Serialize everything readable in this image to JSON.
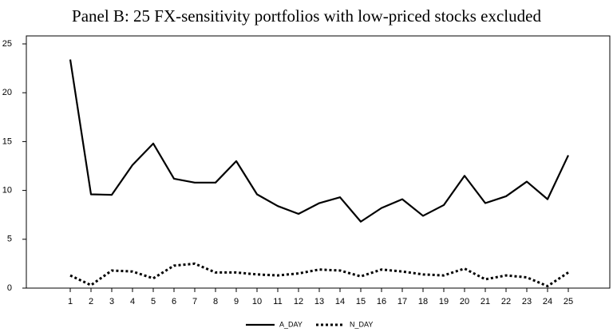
{
  "chart_data": {
    "type": "line",
    "title": "Panel B: 25 FX-sensitivity portfolios with low-priced stocks excluded",
    "categories": [
      "1",
      "2",
      "3",
      "4",
      "5",
      "6",
      "7",
      "8",
      "9",
      "10",
      "11",
      "12",
      "13",
      "14",
      "15",
      "16",
      "17",
      "18",
      "19",
      "20",
      "21",
      "22",
      "23",
      "24",
      "25"
    ],
    "series": [
      {
        "name": "A_DAY",
        "color": "#000000",
        "style": "solid",
        "values": [
          23.4,
          9.6,
          9.55,
          12.6,
          14.8,
          11.2,
          10.8,
          10.8,
          13.0,
          9.6,
          8.4,
          7.6,
          8.7,
          9.3,
          6.8,
          8.2,
          9.1,
          7.4,
          8.5,
          11.5,
          8.7,
          9.4,
          10.9,
          9.1,
          13.6
        ]
      },
      {
        "name": "N_DAY",
        "color": "#000000",
        "style": "dotted",
        "values": [
          1.3,
          0.3,
          1.8,
          1.7,
          1.0,
          2.3,
          2.5,
          1.6,
          1.6,
          1.4,
          1.3,
          1.5,
          1.9,
          1.8,
          1.2,
          1.9,
          1.7,
          1.4,
          1.3,
          2.0,
          0.9,
          1.3,
          1.1,
          0.2,
          1.6
        ]
      }
    ],
    "ylim": [
      0,
      25
    ],
    "yticks": [
      0,
      5,
      10,
      15,
      20,
      25
    ],
    "grid": false,
    "legend": "bottom"
  }
}
